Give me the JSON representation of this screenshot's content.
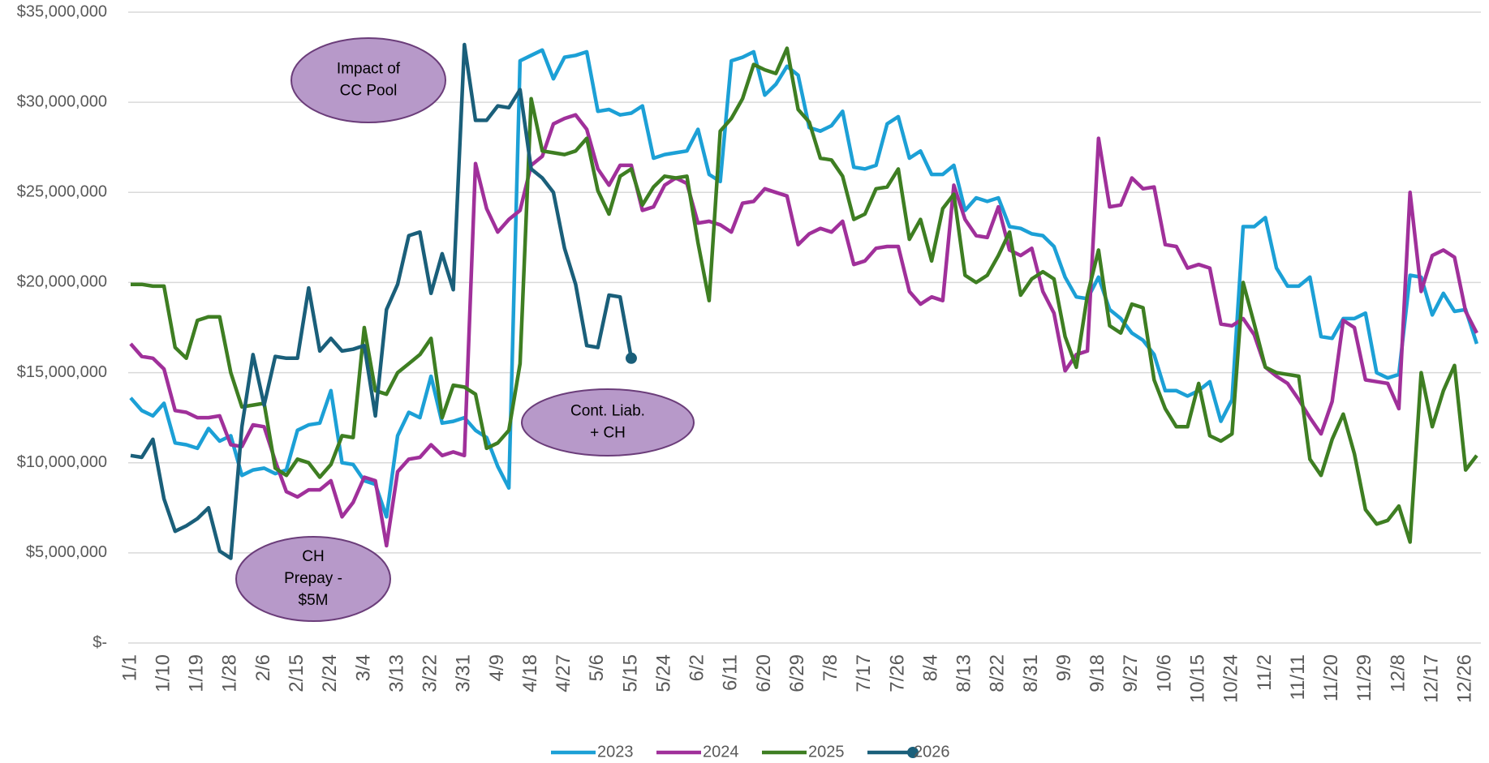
{
  "chart_data": {
    "type": "line",
    "categories": [
      "1/1",
      null,
      null,
      "1/10",
      null,
      null,
      "1/19",
      null,
      null,
      "1/28",
      null,
      null,
      "2/6",
      null,
      null,
      "2/15",
      null,
      null,
      "2/24",
      null,
      null,
      "3/4",
      null,
      null,
      "3/13",
      null,
      null,
      "3/22",
      null,
      null,
      "3/31",
      null,
      null,
      "4/9",
      null,
      null,
      "4/18",
      null,
      null,
      "4/27",
      null,
      null,
      "5/6",
      null,
      null,
      "5/15",
      null,
      null,
      "5/24",
      null,
      null,
      "6/2",
      null,
      null,
      "6/11",
      null,
      null,
      "6/20",
      null,
      null,
      "6/29",
      null,
      null,
      "7/8",
      null,
      null,
      "7/17",
      null,
      null,
      "7/26",
      null,
      null,
      "8/4",
      null,
      null,
      "8/13",
      null,
      null,
      "8/22",
      null,
      null,
      "8/31",
      null,
      null,
      "9/9",
      null,
      null,
      "9/18",
      null,
      null,
      "9/27",
      null,
      null,
      "10/6",
      null,
      null,
      "10/15",
      null,
      null,
      "10/24",
      null,
      null,
      "11/2",
      null,
      null,
      "11/11",
      null,
      null,
      "11/20",
      null,
      null,
      "11/29",
      null,
      null,
      "12/8",
      null,
      null,
      "12/17",
      null,
      null,
      "12/26",
      null
    ],
    "series": [
      {
        "name": "2023",
        "color": "#1ca0d6",
        "values": [
          13600000,
          12900000,
          12600000,
          13300000,
          11100000,
          11000000,
          10800000,
          11900000,
          11200000,
          11500000,
          9300000,
          9600000,
          9700000,
          9400000,
          9600000,
          11800000,
          12100000,
          12200000,
          14000000,
          10000000,
          9900000,
          9000000,
          8800000,
          7000000,
          11500000,
          12800000,
          12500000,
          14800000,
          12200000,
          12300000,
          12500000,
          11800000,
          11400000,
          9800000,
          8600000,
          32300000,
          32600000,
          32900000,
          31300000,
          32500000,
          32600000,
          32800000,
          29500000,
          29600000,
          29300000,
          29400000,
          29800000,
          26900000,
          27100000,
          27200000,
          27300000,
          28500000,
          26000000,
          25600000,
          32300000,
          32500000,
          32800000,
          30400000,
          31000000,
          32000000,
          31500000,
          28600000,
          28400000,
          28700000,
          29500000,
          26400000,
          26300000,
          26500000,
          28800000,
          29200000,
          26900000,
          27300000,
          26000000,
          26000000,
          26500000,
          24000000,
          24700000,
          24500000,
          24700000,
          23100000,
          23000000,
          22700000,
          22600000,
          22000000,
          20300000,
          19200000,
          19100000,
          20300000,
          18500000,
          18000000,
          17200000,
          16800000,
          16000000,
          14000000,
          14000000,
          13700000,
          14000000,
          14500000,
          12300000,
          13500000,
          23100000,
          23100000,
          23600000,
          20800000,
          19800000,
          19800000,
          20300000,
          17000000,
          16900000,
          18000000,
          18000000,
          18300000,
          15000000,
          14700000,
          14900000,
          20400000,
          20300000,
          18200000,
          19400000,
          18400000,
          18500000,
          16600000
        ]
      },
      {
        "name": "2024",
        "color": "#a0309a",
        "values": [
          16600000,
          15900000,
          15800000,
          15200000,
          12900000,
          12800000,
          12500000,
          12500000,
          12600000,
          11000000,
          10900000,
          12100000,
          12000000,
          10100000,
          8400000,
          8100000,
          8500000,
          8500000,
          9000000,
          7000000,
          7800000,
          9200000,
          9000000,
          5400000,
          9500000,
          10200000,
          10300000,
          11000000,
          10400000,
          10600000,
          10400000,
          26600000,
          24100000,
          22800000,
          23500000,
          24000000,
          26500000,
          27000000,
          28800000,
          29100000,
          29300000,
          28500000,
          26300000,
          25400000,
          26500000,
          26500000,
          24000000,
          24200000,
          25400000,
          25800000,
          25500000,
          23300000,
          23400000,
          23200000,
          22800000,
          24400000,
          24500000,
          25200000,
          25000000,
          24800000,
          22100000,
          22700000,
          23000000,
          22800000,
          23400000,
          21000000,
          21200000,
          21900000,
          22000000,
          22000000,
          19500000,
          18800000,
          19200000,
          19000000,
          25400000,
          23500000,
          22600000,
          22500000,
          24200000,
          21800000,
          21500000,
          21900000,
          19500000,
          18300000,
          15100000,
          16000000,
          16200000,
          28000000,
          24200000,
          24300000,
          25800000,
          25200000,
          25300000,
          22100000,
          22000000,
          20800000,
          21000000,
          20800000,
          17700000,
          17600000,
          18000000,
          17100000,
          15300000,
          14800000,
          14400000,
          13500000,
          12500000,
          11600000,
          13400000,
          17900000,
          17500000,
          14600000,
          14500000,
          14400000,
          13000000,
          25000000,
          19500000,
          21500000,
          21800000,
          21400000,
          18400000,
          17200000
        ]
      },
      {
        "name": "2025",
        "color": "#3e7e22",
        "values": [
          19900000,
          19900000,
          19800000,
          19800000,
          16400000,
          15800000,
          17900000,
          18100000,
          18100000,
          15000000,
          13100000,
          13200000,
          13300000,
          9700000,
          9300000,
          10200000,
          10000000,
          9200000,
          9900000,
          11500000,
          11400000,
          17500000,
          14000000,
          13800000,
          15000000,
          15500000,
          16000000,
          16900000,
          12500000,
          14300000,
          14200000,
          13800000,
          10800000,
          11100000,
          11800000,
          15500000,
          30200000,
          27300000,
          27200000,
          27100000,
          27300000,
          28000000,
          25100000,
          23800000,
          25900000,
          26300000,
          24300000,
          25300000,
          25900000,
          25800000,
          25900000,
          22200000,
          19000000,
          28400000,
          29100000,
          30200000,
          32100000,
          31800000,
          31600000,
          33000000,
          29600000,
          28900000,
          26900000,
          26800000,
          25900000,
          23500000,
          23800000,
          25200000,
          25300000,
          26300000,
          22400000,
          23500000,
          21200000,
          24100000,
          24900000,
          20400000,
          20000000,
          20400000,
          21500000,
          22800000,
          19300000,
          20200000,
          20600000,
          20200000,
          17000000,
          15300000,
          19300000,
          21800000,
          17600000,
          17200000,
          18800000,
          18600000,
          14600000,
          13000000,
          12000000,
          12000000,
          14400000,
          11500000,
          11200000,
          11600000,
          20000000,
          17700000,
          15300000,
          15000000,
          14900000,
          14800000,
          10200000,
          9300000,
          11300000,
          12700000,
          10500000,
          7400000,
          6600000,
          6800000,
          7600000,
          5600000,
          15000000,
          12000000,
          14000000,
          15400000,
          9600000,
          10400000
        ]
      },
      {
        "name": "2026",
        "color": "#1a5f7a",
        "marker": "circle",
        "values": [
          10400000,
          10300000,
          11300000,
          8000000,
          6200000,
          6500000,
          6900000,
          7500000,
          5100000,
          4700000,
          12000000,
          16000000,
          13200000,
          15900000,
          15800000,
          15800000,
          19700000,
          16200000,
          16900000,
          16200000,
          16300000,
          16500000,
          12600000,
          18500000,
          19900000,
          22600000,
          22800000,
          19400000,
          21600000,
          19600000,
          33200000,
          29000000,
          29000000,
          29800000,
          29700000,
          30700000,
          26300000,
          25800000,
          25000000,
          21900000,
          19900000,
          16500000,
          16400000,
          19300000,
          19200000,
          15800000,
          null,
          null,
          null,
          null,
          null,
          null,
          null,
          null,
          null,
          null,
          null,
          null,
          null,
          null,
          null,
          null,
          null,
          null,
          null,
          null,
          null,
          null,
          null,
          null,
          null,
          null,
          null,
          null,
          null,
          null,
          null,
          null,
          null,
          null,
          null,
          null,
          null,
          null,
          null,
          null,
          null,
          null,
          null,
          null,
          null,
          null,
          null,
          null,
          null,
          null,
          null,
          null,
          null,
          null,
          null,
          null,
          null,
          null,
          null,
          null,
          null,
          null,
          null,
          null,
          null,
          null,
          null,
          null,
          null,
          null,
          null,
          null,
          null,
          null,
          null,
          null
        ]
      }
    ],
    "ylim": [
      0,
      35000000
    ],
    "yticks": [
      {
        "value": 0,
        "label": "$-"
      },
      {
        "value": 5000000,
        "label": "$5,000,000"
      },
      {
        "value": 10000000,
        "label": "$10,000,000"
      },
      {
        "value": 15000000,
        "label": "$15,000,000"
      },
      {
        "value": 20000000,
        "label": "$20,000,000"
      },
      {
        "value": 25000000,
        "label": "$25,000,000"
      },
      {
        "value": 30000000,
        "label": "$30,000,000"
      },
      {
        "value": 35000000,
        "label": "$35,000,000"
      }
    ],
    "grid": true,
    "legend": "bottom",
    "annotations": [
      {
        "lines": [
          "Impact of",
          "CC Pool"
        ]
      },
      {
        "lines": [
          "Cont. Liab.",
          "+ CH"
        ]
      },
      {
        "lines": [
          "CH",
          "Prepay -",
          "$5M"
        ]
      }
    ]
  }
}
